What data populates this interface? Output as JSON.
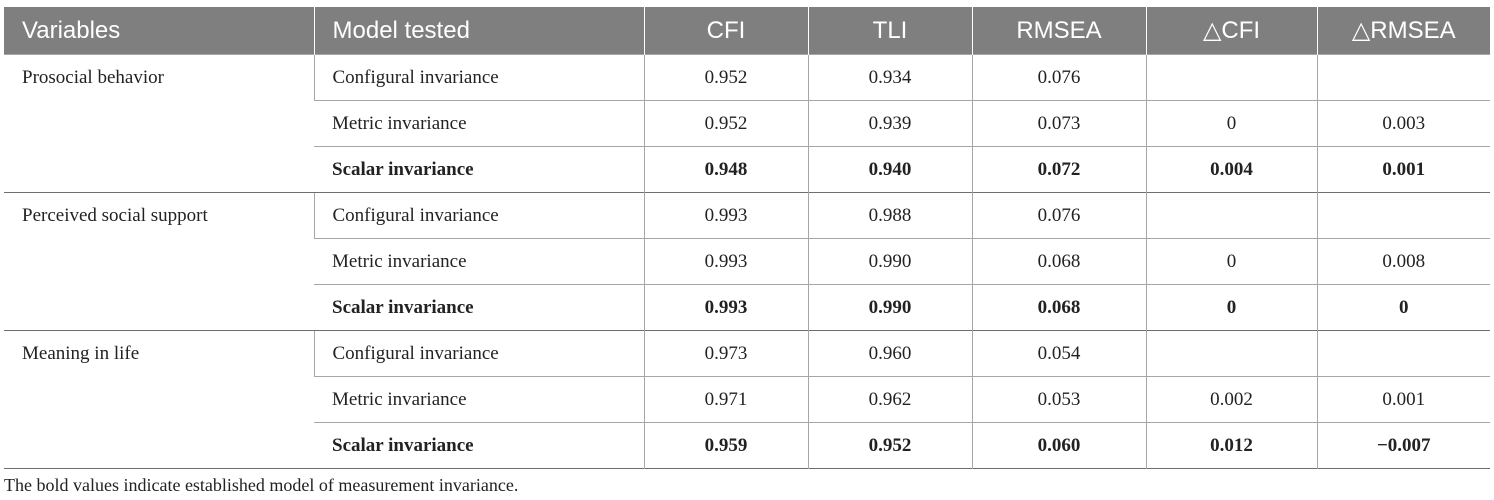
{
  "table": {
    "headers": [
      "Variables",
      "Model tested",
      "CFI",
      "TLI",
      "RMSEA",
      "△CFI",
      "△RMSEA"
    ],
    "groups": [
      {
        "variable": "Prosocial behavior",
        "rows": [
          {
            "model": "Configural invariance",
            "cfi": "0.952",
            "tli": "0.934",
            "rmsea": "0.076",
            "dcfi": "",
            "drmsea": ""
          },
          {
            "model": "Metric invariance",
            "cfi": "0.952",
            "tli": "0.939",
            "rmsea": "0.073",
            "dcfi": "0",
            "drmsea": "0.003"
          },
          {
            "model": "Scalar invariance",
            "cfi": "0.948",
            "tli": "0.940",
            "rmsea": "0.072",
            "dcfi": "0.004",
            "drmsea": "0.001"
          }
        ]
      },
      {
        "variable": "Perceived social support",
        "rows": [
          {
            "model": "Configural invariance",
            "cfi": "0.993",
            "tli": "0.988",
            "rmsea": "0.076",
            "dcfi": "",
            "drmsea": ""
          },
          {
            "model": "Metric invariance",
            "cfi": "0.993",
            "tli": "0.990",
            "rmsea": "0.068",
            "dcfi": "0",
            "drmsea": "0.008"
          },
          {
            "model": "Scalar invariance",
            "cfi": "0.993",
            "tli": "0.990",
            "rmsea": "0.068",
            "dcfi": "0",
            "drmsea": "0"
          }
        ]
      },
      {
        "variable": "Meaning in life",
        "rows": [
          {
            "model": "Configural invariance",
            "cfi": "0.973",
            "tli": "0.960",
            "rmsea": "0.054",
            "dcfi": "",
            "drmsea": ""
          },
          {
            "model": "Metric invariance",
            "cfi": "0.971",
            "tli": "0.962",
            "rmsea": "0.053",
            "dcfi": "0.002",
            "drmsea": "0.001"
          },
          {
            "model": "Scalar invariance",
            "cfi": "0.959",
            "tli": "0.952",
            "rmsea": "0.060",
            "dcfi": "0.012",
            "drmsea": "−0.007"
          }
        ]
      }
    ],
    "footnote": "The bold values indicate established model of measurement invariance."
  }
}
